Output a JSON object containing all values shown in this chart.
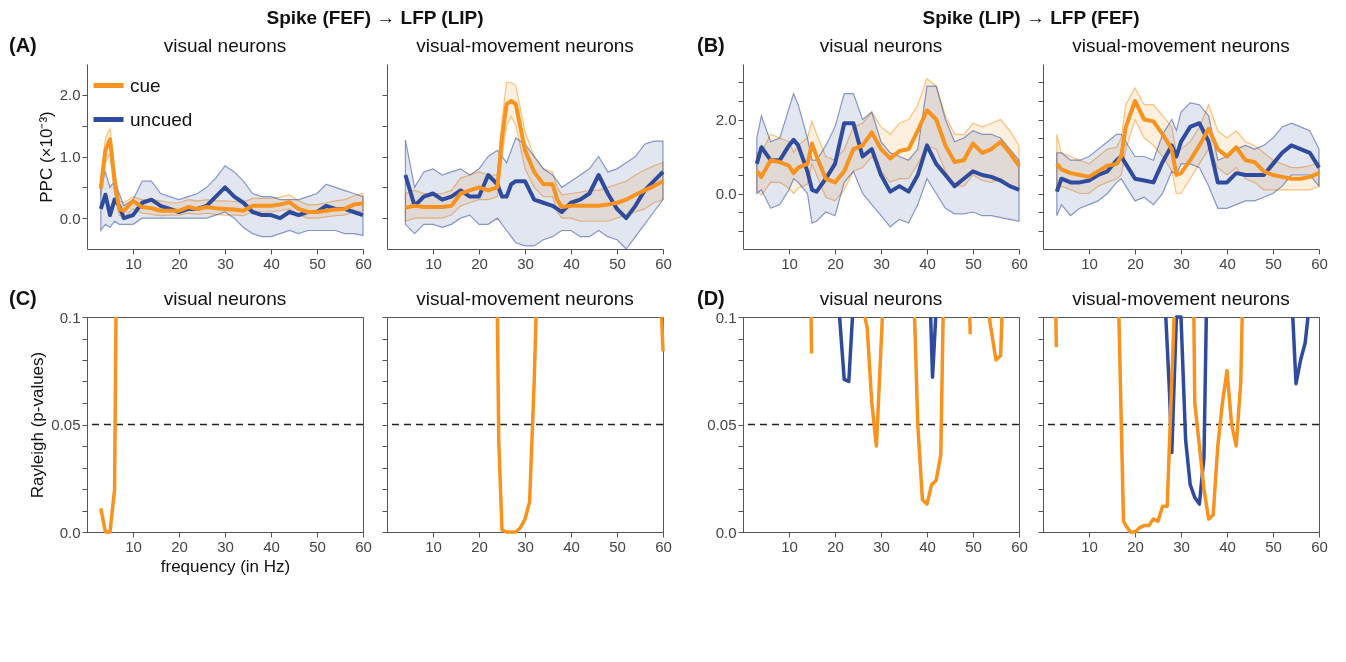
{
  "chart_data": [
    {
      "type": "line",
      "title": "visual neurons",
      "ylabel": "PPC (×10⁻³)",
      "annotations": [
        "(A)",
        "Spike (FEF) → LFP (LIP)"
      ],
      "legend": "top left",
      "xlim": [
        0,
        60
      ],
      "xticks": [
        10,
        20,
        30,
        40,
        50,
        60
      ],
      "ylim": [
        -0.5,
        2.5
      ],
      "yticks": [
        {
          "value": 0,
          "label": "0.0"
        },
        {
          "value": 0.5,
          "label": null
        },
        {
          "value": 1,
          "label": "1.0"
        },
        {
          "value": 1.5,
          "label": null
        },
        {
          "value": 2,
          "label": "2.0"
        }
      ],
      "x": [
        3,
        4,
        5,
        6,
        7,
        8,
        10,
        12,
        14,
        16,
        18,
        20,
        22,
        24,
        26,
        28,
        30,
        32,
        34,
        36,
        38,
        40,
        42,
        44,
        46,
        48,
        50,
        52,
        54,
        56,
        58,
        60
      ],
      "series": [
        {
          "name": "cue",
          "color": "#f7931e",
          "values": [
            0.48,
            1.1,
            1.28,
            0.6,
            0.15,
            0.12,
            0.28,
            0.18,
            0.16,
            0.12,
            0.12,
            0.12,
            0.18,
            0.15,
            0.18,
            0.16,
            0.15,
            0.14,
            0.12,
            0.2,
            0.2,
            0.2,
            0.22,
            0.26,
            0.15,
            0.1,
            0.1,
            0.12,
            0.14,
            0.15,
            0.22,
            0.24
          ],
          "lower": [
            0.35,
            0.9,
            1.05,
            0.4,
            0.05,
            0.0,
            0.15,
            0.08,
            0.06,
            0.04,
            0.05,
            0.05,
            0.08,
            0.06,
            0.08,
            0.06,
            0.05,
            0.05,
            0.04,
            0.1,
            0.1,
            0.1,
            0.12,
            0.15,
            0.05,
            0.0,
            0.0,
            0.02,
            0.04,
            0.05,
            0.1,
            0.12
          ],
          "upper": [
            0.6,
            1.3,
            1.45,
            0.8,
            0.28,
            0.25,
            0.35,
            0.3,
            0.3,
            0.28,
            0.25,
            0.25,
            0.3,
            0.28,
            0.3,
            0.28,
            0.28,
            0.27,
            0.26,
            0.32,
            0.32,
            0.32,
            0.34,
            0.38,
            0.28,
            0.22,
            0.22,
            0.25,
            0.28,
            0.3,
            0.36,
            0.4
          ]
        },
        {
          "name": "uncued",
          "color": "#2f4b9e",
          "values": [
            0.15,
            0.38,
            0.05,
            0.3,
            0.2,
            0.0,
            0.05,
            0.25,
            0.3,
            0.2,
            0.15,
            0.1,
            0.15,
            0.15,
            0.2,
            0.35,
            0.5,
            0.35,
            0.25,
            0.1,
            0.05,
            0.05,
            0.0,
            0.1,
            0.05,
            0.1,
            0.1,
            0.2,
            0.15,
            0.15,
            0.1,
            0.05
          ],
          "lower": [
            -0.2,
            -0.1,
            -0.15,
            -0.05,
            -0.1,
            -0.1,
            -0.1,
            0.0,
            0.0,
            0.0,
            0.0,
            0.0,
            0.0,
            0.0,
            0.0,
            0.05,
            0.1,
            0.0,
            -0.15,
            -0.25,
            -0.3,
            -0.3,
            -0.25,
            -0.2,
            -0.25,
            -0.2,
            -0.2,
            -0.2,
            -0.2,
            -0.25,
            -0.25,
            -0.28
          ],
          "upper": [
            0.5,
            0.75,
            0.5,
            0.6,
            0.4,
            0.2,
            0.3,
            0.6,
            0.6,
            0.4,
            0.35,
            0.3,
            0.35,
            0.4,
            0.5,
            0.65,
            0.85,
            0.75,
            0.6,
            0.4,
            0.35,
            0.35,
            0.3,
            0.3,
            0.3,
            0.35,
            0.4,
            0.55,
            0.5,
            0.45,
            0.4,
            0.35
          ]
        }
      ]
    },
    {
      "type": "line",
      "title": "visual-movement neurons",
      "tick_labels": "x",
      "xlim": [
        0,
        60
      ],
      "xticks": [
        10,
        20,
        30,
        40,
        50,
        60
      ],
      "ylim": [
        -0.5,
        2.5
      ],
      "yticks": [
        0,
        0.5,
        1,
        1.5,
        2
      ],
      "x": [
        4,
        6,
        8,
        10,
        12,
        14,
        16,
        18,
        20,
        22,
        24,
        25,
        26,
        27,
        28,
        30,
        32,
        34,
        36,
        37,
        38,
        40,
        42,
        44,
        46,
        48,
        50,
        52,
        54,
        56,
        58,
        60
      ],
      "series": [
        {
          "color": "#f7931e",
          "values": [
            0.17,
            0.2,
            0.18,
            0.18,
            0.18,
            0.2,
            0.4,
            0.45,
            0.5,
            0.45,
            0.5,
            1.3,
            1.85,
            1.9,
            1.85,
            1.1,
            0.75,
            0.55,
            0.55,
            0.3,
            0.18,
            0.2,
            0.2,
            0.2,
            0.2,
            0.22,
            0.25,
            0.3,
            0.38,
            0.45,
            0.52,
            0.6
          ],
          "lower": [
            -0.05,
            0.0,
            0.0,
            0.0,
            0.0,
            0.05,
            0.2,
            0.25,
            0.3,
            0.3,
            0.35,
            1.0,
            1.5,
            1.65,
            1.5,
            0.8,
            0.5,
            0.35,
            0.35,
            0.1,
            0.0,
            0.0,
            -0.05,
            -0.05,
            -0.05,
            -0.05,
            0.0,
            0.05,
            0.1,
            0.15,
            0.25,
            0.3
          ],
          "upper": [
            0.4,
            0.45,
            0.4,
            0.4,
            0.4,
            0.45,
            0.65,
            0.7,
            0.75,
            0.7,
            0.7,
            1.6,
            2.2,
            2.2,
            2.15,
            1.4,
            1.0,
            0.8,
            0.75,
            0.5,
            0.38,
            0.4,
            0.42,
            0.45,
            0.45,
            0.5,
            0.55,
            0.6,
            0.7,
            0.78,
            0.85,
            0.9
          ]
        },
        {
          "color": "#2f4b9e",
          "values": [
            0.7,
            0.2,
            0.35,
            0.4,
            0.3,
            0.35,
            0.45,
            0.35,
            0.35,
            0.7,
            0.55,
            0.35,
            0.35,
            0.55,
            0.6,
            0.6,
            0.3,
            0.25,
            0.2,
            0.15,
            0.1,
            0.25,
            0.3,
            0.4,
            0.7,
            0.4,
            0.15,
            0.0,
            0.2,
            0.45,
            0.6,
            0.75
          ],
          "lower": [
            -0.1,
            -0.25,
            -0.1,
            -0.1,
            -0.15,
            -0.1,
            0.0,
            0.05,
            -0.1,
            -0.1,
            0.0,
            -0.1,
            -0.2,
            -0.3,
            -0.4,
            -0.45,
            -0.45,
            -0.35,
            -0.3,
            -0.25,
            -0.2,
            -0.2,
            -0.3,
            -0.3,
            -0.2,
            -0.3,
            -0.35,
            -0.5,
            -0.3,
            -0.1,
            0.1,
            0.3
          ],
          "upper": [
            1.27,
            0.5,
            0.75,
            0.8,
            0.7,
            0.75,
            0.8,
            0.7,
            0.8,
            1.0,
            1.1,
            1.0,
            0.9,
            1.1,
            1.3,
            1.2,
            1.0,
            0.8,
            0.7,
            0.6,
            0.5,
            0.6,
            0.7,
            0.8,
            1.0,
            0.75,
            0.8,
            0.9,
            1.0,
            1.2,
            1.25,
            1.25
          ]
        }
      ]
    },
    {
      "type": "line",
      "title": "visual neurons",
      "annotations": [
        "(B)",
        "Spike (LIP) → LFP (FEF)"
      ],
      "xlim": [
        0,
        60
      ],
      "xticks": [
        10,
        20,
        30,
        40,
        50,
        60
      ],
      "ylim": [
        -1.5,
        3.5
      ],
      "yticks": [
        {
          "value": -1,
          "label": null
        },
        {
          "value": -0.5,
          "label": null
        },
        {
          "value": 0,
          "label": "0.0"
        },
        {
          "value": 0.5,
          "label": null
        },
        {
          "value": 1,
          "label": null
        },
        {
          "value": 1.5,
          "label": null
        },
        {
          "value": 2,
          "label": "2.0"
        },
        {
          "value": 2.5,
          "label": null
        },
        {
          "value": 3,
          "label": null
        }
      ],
      "x": [
        3,
        4,
        6,
        8,
        10,
        11,
        12,
        14,
        15,
        16,
        18,
        20,
        22,
        24,
        26,
        28,
        30,
        32,
        34,
        36,
        38,
        40,
        42,
        44,
        46,
        48,
        50,
        52,
        54,
        56,
        58,
        60
      ],
      "series": [
        {
          "color": "#f7931e",
          "values": [
            0.6,
            0.45,
            0.9,
            0.85,
            0.75,
            0.55,
            0.7,
            0.8,
            1.35,
            1.0,
            0.4,
            0.3,
            0.6,
            1.2,
            1.3,
            1.65,
            1.2,
            0.95,
            1.15,
            1.2,
            1.7,
            2.25,
            2.0,
            1.3,
            0.85,
            0.9,
            1.35,
            1.1,
            1.2,
            1.4,
            1.1,
            0.75
          ],
          "lower": [
            0.1,
            -0.05,
            0.3,
            0.3,
            0.15,
            0.0,
            0.15,
            0.25,
            0.8,
            0.5,
            -0.1,
            -0.2,
            0.1,
            0.6,
            0.7,
            1.0,
            0.6,
            0.3,
            0.4,
            0.4,
            0.8,
            1.3,
            1.2,
            0.6,
            0.2,
            0.2,
            0.5,
            0.35,
            0.3,
            0.4,
            0.2,
            0.1
          ],
          "upper": [
            1.1,
            1.1,
            1.6,
            1.5,
            1.4,
            1.1,
            1.3,
            1.5,
            1.95,
            1.6,
            1.0,
            0.9,
            1.2,
            1.8,
            1.9,
            2.2,
            1.8,
            1.6,
            1.9,
            2.0,
            2.4,
            3.1,
            2.9,
            2.1,
            1.6,
            1.6,
            1.9,
            1.8,
            1.9,
            2.0,
            1.7,
            1.3
          ]
        },
        {
          "color": "#2f4b9e",
          "values": [
            0.8,
            1.25,
            0.9,
            0.9,
            1.3,
            1.45,
            1.3,
            0.6,
            0.1,
            0.05,
            0.4,
            0.8,
            1.9,
            1.9,
            1.0,
            1.2,
            0.5,
            0.05,
            0.2,
            0.05,
            0.5,
            1.3,
            0.8,
            0.5,
            0.2,
            0.4,
            0.6,
            0.5,
            0.45,
            0.35,
            0.2,
            0.1
          ],
          "lower": [
            0.0,
            0.1,
            -0.4,
            -0.3,
            0.1,
            0.4,
            0.3,
            0.0,
            -0.8,
            -0.75,
            -0.5,
            -0.6,
            0.3,
            0.6,
            0.0,
            -0.3,
            -0.6,
            -0.9,
            -0.7,
            -0.8,
            -0.3,
            0.4,
            0.0,
            -0.4,
            -0.55,
            -0.55,
            -0.5,
            -0.6,
            -0.6,
            -0.65,
            -0.7,
            -0.75
          ],
          "upper": [
            1.5,
            2.1,
            1.4,
            1.5,
            2.3,
            2.7,
            2.4,
            1.5,
            0.9,
            0.9,
            1.3,
            1.8,
            2.7,
            2.7,
            2.0,
            2.2,
            1.4,
            1.1,
            1.0,
            0.9,
            1.2,
            2.9,
            2.9,
            2.0,
            1.4,
            1.5,
            1.7,
            1.6,
            1.6,
            1.5,
            1.2,
            0.9
          ]
        }
      ]
    },
    {
      "type": "line",
      "title": "visual-movement neurons",
      "tick_labels": "x",
      "xlim": [
        0,
        60
      ],
      "xticks": [
        10,
        20,
        30,
        40,
        50,
        60
      ],
      "ylim": [
        -1.5,
        3.5
      ],
      "yticks": [
        -1,
        -0.5,
        0,
        0.5,
        1,
        1.5,
        2,
        2.5,
        3
      ],
      "x": [
        3,
        4,
        6,
        8,
        10,
        12,
        14,
        16,
        17,
        18,
        20,
        22,
        24,
        26,
        28,
        29,
        30,
        32,
        34,
        36,
        38,
        40,
        42,
        44,
        46,
        48,
        50,
        52,
        54,
        56,
        58,
        60
      ],
      "series": [
        {
          "color": "#f7931e",
          "values": [
            0.8,
            0.65,
            0.55,
            0.5,
            0.45,
            0.6,
            0.75,
            0.8,
            1.0,
            1.8,
            2.5,
            2.0,
            1.95,
            1.6,
            1.2,
            0.5,
            0.55,
            0.9,
            1.3,
            1.75,
            1.2,
            1.0,
            1.25,
            0.9,
            0.85,
            0.6,
            0.5,
            0.45,
            0.4,
            0.4,
            0.45,
            0.55
          ],
          "lower": [
            0.1,
            0.2,
            0.1,
            0.0,
            0.0,
            0.2,
            0.3,
            0.4,
            0.5,
            1.2,
            2.0,
            1.5,
            1.3,
            1.0,
            0.6,
            0.0,
            0.0,
            0.4,
            0.8,
            1.2,
            0.7,
            0.5,
            0.7,
            0.4,
            0.3,
            0.1,
            0.1,
            0.1,
            0.1,
            0.1,
            0.1,
            0.2
          ],
          "upper": [
            1.6,
            1.1,
            1.0,
            0.9,
            0.8,
            1.0,
            1.2,
            1.25,
            1.5,
            2.4,
            2.85,
            2.4,
            2.4,
            2.1,
            1.8,
            1.1,
            1.2,
            1.4,
            1.8,
            2.4,
            1.7,
            1.5,
            1.7,
            1.4,
            1.3,
            1.1,
            0.9,
            0.8,
            0.7,
            0.7,
            0.75,
            0.85
          ]
        },
        {
          "color": "#2f4b9e",
          "values": [
            0.05,
            0.4,
            0.3,
            0.3,
            0.35,
            0.5,
            0.6,
            0.9,
            1.0,
            0.8,
            0.4,
            0.35,
            0.3,
            0.85,
            1.3,
            1.0,
            1.4,
            1.8,
            1.9,
            1.4,
            0.3,
            0.3,
            0.55,
            0.5,
            0.5,
            0.5,
            0.8,
            1.1,
            1.3,
            1.2,
            1.1,
            0.7
          ],
          "lower": [
            -0.6,
            -0.3,
            -0.6,
            -0.4,
            -0.3,
            -0.2,
            0.0,
            0.3,
            0.4,
            0.2,
            -0.2,
            -0.1,
            -0.3,
            0.0,
            0.6,
            0.5,
            0.8,
            0.8,
            0.7,
            0.2,
            -0.4,
            -0.4,
            -0.3,
            -0.2,
            -0.2,
            -0.1,
            0.0,
            0.2,
            0.5,
            0.5,
            0.5,
            0.2
          ],
          "upper": [
            1.1,
            1.1,
            0.9,
            0.9,
            1.0,
            1.2,
            1.4,
            1.6,
            1.6,
            1.4,
            1.0,
            1.0,
            0.9,
            1.6,
            2.0,
            1.7,
            2.2,
            2.45,
            2.4,
            2.1,
            0.9,
            1.0,
            1.2,
            1.3,
            1.2,
            1.3,
            1.5,
            1.8,
            1.9,
            1.8,
            1.7,
            1.2
          ]
        }
      ]
    },
    {
      "type": "line",
      "title": "visual neurons",
      "ylabel": "Rayleigh (p-values)",
      "xlabel": "frequency (in Hz)",
      "annotations": [
        "(C)"
      ],
      "xlim": [
        0,
        60
      ],
      "xticks": [
        10,
        20,
        30,
        40,
        50,
        60
      ],
      "ylim": [
        0,
        0.1
      ],
      "yticks": [
        {
          "value": 0,
          "label": "0.0"
        },
        {
          "value": 0.01,
          "label": null
        },
        {
          "value": 0.02,
          "label": null
        },
        {
          "value": 0.03,
          "label": null
        },
        {
          "value": 0.04,
          "label": null
        },
        0.05,
        {
          "value": 0.06,
          "label": null
        },
        {
          "value": 0.07,
          "label": null
        },
        {
          "value": 0.08,
          "label": null
        },
        {
          "value": 0.09,
          "label": null
        },
        0.1
      ],
      "ref_lines": [
        {
          "axis": "y",
          "value": 0.05,
          "line_style": "dashed",
          "color": "#222222"
        }
      ],
      "series": [
        {
          "color": "#f7931e",
          "x": [
            3,
            4,
            5,
            6,
            6.3
          ],
          "values": [
            0.011,
            0.0,
            0.0,
            0.02,
            0.1
          ]
        }
      ]
    },
    {
      "type": "line",
      "title": "visual-movement neurons",
      "tick_labels": "x",
      "xlim": [
        0,
        60
      ],
      "xticks": [
        10,
        20,
        30,
        40,
        50,
        60
      ],
      "ylim": [
        0,
        0.1
      ],
      "yticks": [
        0,
        0.01,
        0.02,
        0.03,
        0.04,
        0.05,
        0.06,
        0.07,
        0.08,
        0.09,
        0.1
      ],
      "ref_lines": [
        {
          "axis": "y",
          "value": 0.05,
          "line_style": "dashed",
          "color": "#222222"
        }
      ],
      "series": [
        {
          "color": "#f7931e",
          "x": [
            24,
            24.3,
            25,
            26,
            28,
            29,
            30,
            31,
            32,
            32.4,
            46,
            59.7,
            60
          ],
          "values": [
            0.1,
            0.042,
            0.001,
            0.0,
            0.0,
            0.002,
            0.006,
            0.014,
            0.07,
            0.1,
            null,
            0.1,
            0.084
          ]
        }
      ]
    },
    {
      "type": "line",
      "title": "visual neurons",
      "annotations": [
        "(D)"
      ],
      "xlim": [
        0,
        60
      ],
      "xticks": [
        10,
        20,
        30,
        40,
        50,
        60
      ],
      "ylim": [
        0,
        0.1
      ],
      "yticks": [
        {
          "value": 0,
          "label": "0.0"
        },
        {
          "value": 0.01,
          "label": null
        },
        {
          "value": 0.02,
          "label": null
        },
        {
          "value": 0.03,
          "label": null
        },
        {
          "value": 0.04,
          "label": null
        },
        0.05,
        {
          "value": 0.06,
          "label": null
        },
        {
          "value": 0.07,
          "label": null
        },
        {
          "value": 0.08,
          "label": null
        },
        {
          "value": 0.09,
          "label": null
        },
        0.1
      ],
      "ref_lines": [
        {
          "axis": "y",
          "value": 0.05,
          "line_style": "dashed",
          "color": "#222222"
        }
      ],
      "series": [
        {
          "color": "#f7931e",
          "x": [
            14.8,
            14.9,
            20,
            26.5,
            27,
            28,
            29,
            30.3,
            34,
            37.3,
            38,
            39,
            40,
            41,
            42,
            43,
            43.5,
            46,
            49.3,
            49.4,
            51,
            53.5,
            55,
            56,
            56.3
          ],
          "values": [
            0.1,
            0.083,
            null,
            0.1,
            0.095,
            0.06,
            0.04,
            0.1,
            null,
            0.1,
            0.05,
            0.015,
            0.013,
            0.022,
            0.024,
            0.036,
            0.1,
            null,
            0.1,
            0.092,
            null,
            0.1,
            0.08,
            0.082,
            0.1
          ]
        },
        {
          "color": "#2f4b9e",
          "x": [
            21,
            22,
            23,
            23.8,
            30,
            40.8,
            41.2,
            41.9
          ],
          "values": [
            0.1,
            0.071,
            0.07,
            0.1,
            null,
            0.1,
            0.072,
            0.1
          ]
        }
      ]
    },
    {
      "type": "line",
      "title": "visual-movement neurons",
      "tick_labels": "x",
      "xlim": [
        0,
        60
      ],
      "xticks": [
        10,
        20,
        30,
        40,
        50,
        60
      ],
      "ylim": [
        0,
        0.1
      ],
      "yticks": [
        0,
        0.01,
        0.02,
        0.03,
        0.04,
        0.05,
        0.06,
        0.07,
        0.08,
        0.09,
        0.1
      ],
      "ref_lines": [
        {
          "axis": "y",
          "value": 0.05,
          "line_style": "dashed",
          "color": "#222222"
        }
      ],
      "series": [
        {
          "color": "#f7931e",
          "x": [
            2.8,
            2.9,
            10,
            16.5,
            17.5,
            18,
            19,
            20,
            21,
            22,
            23,
            24,
            25,
            26,
            27,
            28.5,
            30,
            32.8,
            33,
            34,
            35,
            36,
            37,
            38,
            39,
            40,
            41,
            42,
            43,
            43.3
          ],
          "values": [
            0.1,
            0.086,
            null,
            0.1,
            0.005,
            0.003,
            0.0,
            0.0,
            0.002,
            0.003,
            0.003,
            0.006,
            0.005,
            0.012,
            0.012,
            0.1,
            null,
            0.1,
            0.06,
            0.04,
            0.02,
            0.006,
            0.008,
            0.04,
            0.06,
            0.075,
            0.05,
            0.04,
            0.07,
            0.1
          ]
        },
        {
          "color": "#2f4b9e",
          "x": [
            26.7,
            27.5,
            28,
            29,
            30,
            31,
            32,
            33,
            34,
            35,
            35.5,
            45,
            54.3,
            55,
            56,
            57,
            57.6
          ],
          "values": [
            0.1,
            0.065,
            0.037,
            0.1,
            0.1,
            0.043,
            0.022,
            0.016,
            0.013,
            0.035,
            0.1,
            null,
            0.1,
            0.069,
            0.08,
            0.088,
            0.1
          ]
        }
      ]
    }
  ]
}
